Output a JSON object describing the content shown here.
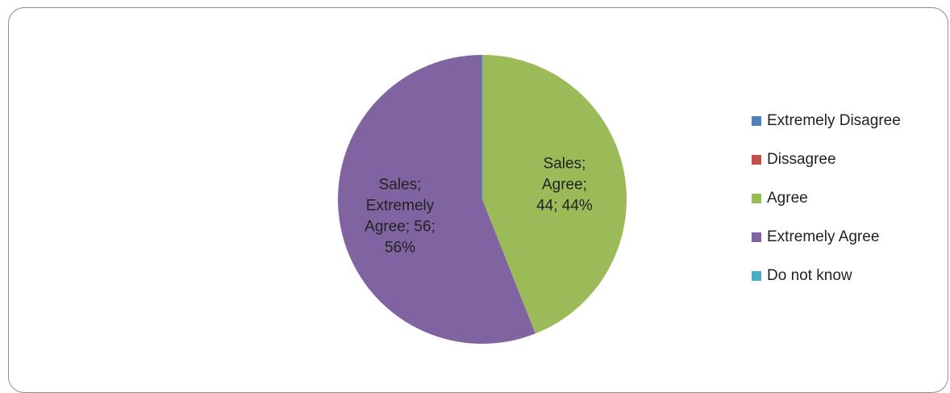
{
  "chart_data": {
    "type": "pie",
    "series_name": "Sales",
    "categories": [
      "Extremely Disagree",
      "Dissagree",
      "Agree",
      "Extremely Agree",
      "Do not know"
    ],
    "values": [
      0,
      0,
      44,
      56,
      0
    ],
    "percent_labels": [
      "0%",
      "0%",
      "44%",
      "56%",
      "0%"
    ],
    "colors": [
      "#4F81BD",
      "#C0504D",
      "#9BBB59",
      "#8064A2",
      "#4BACC6"
    ],
    "data_labels": [
      {
        "category_index": 2,
        "lines": [
          "Sales;",
          "Agree;",
          "44; 44%"
        ]
      },
      {
        "category_index": 3,
        "lines": [
          "Sales;",
          "Extremely",
          "Agree; 56;",
          "56%"
        ]
      }
    ],
    "legend_position": "right",
    "start_angle_deg": 0,
    "direction": "clockwise"
  }
}
